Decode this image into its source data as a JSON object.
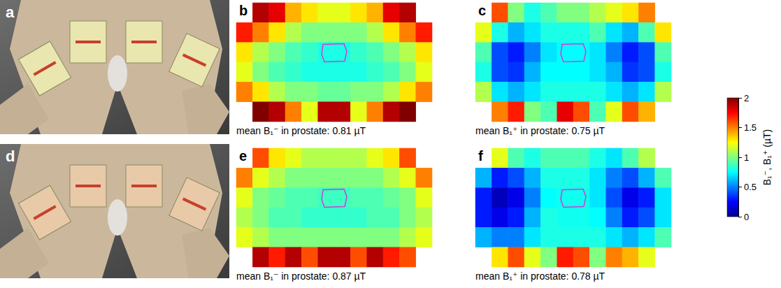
{
  "chart_data": [
    {
      "type": "heatmap",
      "letter": "b",
      "caption": "mean B₁⁻ in prostate: 0.81 µT",
      "cells": [
        [
          null,
          1.9,
          1.8,
          1.4,
          1.3,
          1.2,
          1.2,
          1.3,
          1.4,
          1.8,
          1.9,
          null
        ],
        [
          1.7,
          1.5,
          1.3,
          1.1,
          1.0,
          1.0,
          1.0,
          1.0,
          1.1,
          1.3,
          1.5,
          1.7
        ],
        [
          1.3,
          1.1,
          1.0,
          0.9,
          0.85,
          0.8,
          0.8,
          0.85,
          0.9,
          1.0,
          1.1,
          1.3
        ],
        [
          1.2,
          1.0,
          0.9,
          0.85,
          0.8,
          0.8,
          0.8,
          0.8,
          0.85,
          0.9,
          1.0,
          1.2
        ],
        [
          1.5,
          1.3,
          1.1,
          1.0,
          1.0,
          0.95,
          0.95,
          1.0,
          1.0,
          1.1,
          1.3,
          1.5
        ],
        [
          null,
          2.0,
          1.9,
          1.5,
          1.2,
          1.9,
          1.9,
          1.2,
          1.5,
          1.9,
          2.0,
          null
        ]
      ]
    },
    {
      "type": "heatmap",
      "letter": "c",
      "caption": "mean B₁⁺ in prostate: 0.75 µT",
      "cells": [
        [
          null,
          1.6,
          1.0,
          0.8,
          0.9,
          1.0,
          1.0,
          1.1,
          1.2,
          1.3,
          1.5,
          null
        ],
        [
          1.2,
          0.8,
          0.6,
          0.7,
          0.8,
          0.8,
          0.8,
          0.9,
          0.7,
          0.6,
          0.9,
          1.3
        ],
        [
          0.9,
          0.4,
          0.3,
          0.5,
          0.7,
          0.75,
          0.75,
          0.7,
          0.5,
          0.3,
          0.4,
          0.9
        ],
        [
          0.8,
          0.4,
          0.35,
          0.6,
          0.75,
          0.75,
          0.75,
          0.7,
          0.6,
          0.35,
          0.4,
          0.8
        ],
        [
          1.1,
          0.7,
          0.6,
          0.7,
          0.8,
          0.8,
          0.8,
          0.8,
          0.7,
          0.6,
          0.7,
          1.1
        ],
        [
          null,
          1.5,
          1.7,
          1.0,
          0.9,
          1.8,
          1.6,
          0.9,
          1.2,
          1.6,
          1.4,
          null
        ]
      ]
    },
    {
      "type": "heatmap",
      "letter": "e",
      "caption": "mean B₁⁻ in prostate: 0.87 µT",
      "cells": [
        [
          null,
          1.6,
          1.3,
          1.2,
          1.1,
          1.1,
          1.1,
          1.1,
          1.2,
          1.3,
          1.6,
          null
        ],
        [
          1.5,
          1.2,
          1.1,
          1.0,
          1.0,
          1.0,
          1.0,
          1.0,
          1.0,
          1.1,
          1.2,
          1.5
        ],
        [
          1.2,
          1.0,
          0.95,
          0.9,
          0.9,
          0.87,
          0.87,
          0.9,
          0.9,
          0.95,
          1.0,
          1.2
        ],
        [
          1.1,
          1.0,
          0.9,
          0.9,
          0.85,
          0.85,
          0.85,
          0.85,
          0.9,
          0.9,
          1.0,
          1.1
        ],
        [
          1.2,
          1.1,
          1.0,
          1.0,
          1.0,
          1.0,
          1.0,
          1.0,
          1.0,
          1.0,
          1.1,
          1.2
        ],
        [
          null,
          1.9,
          1.7,
          1.9,
          1.6,
          1.9,
          1.9,
          1.6,
          1.9,
          1.7,
          1.6,
          null
        ]
      ]
    },
    {
      "type": "heatmap",
      "letter": "f",
      "caption": "mean B₁⁺ in prostate: 0.78 µT",
      "cells": [
        [
          null,
          1.2,
          0.9,
          0.8,
          0.9,
          0.9,
          0.9,
          0.8,
          0.7,
          0.9,
          1.1,
          null
        ],
        [
          0.6,
          0.3,
          0.4,
          0.6,
          0.8,
          0.8,
          0.8,
          0.7,
          0.5,
          0.4,
          0.6,
          0.9
        ],
        [
          0.3,
          0.1,
          0.2,
          0.5,
          0.75,
          0.78,
          0.78,
          0.7,
          0.4,
          0.2,
          0.3,
          0.7
        ],
        [
          0.3,
          0.2,
          0.3,
          0.6,
          0.8,
          0.78,
          0.78,
          0.75,
          0.5,
          0.3,
          0.4,
          0.7
        ],
        [
          0.6,
          0.5,
          0.5,
          0.7,
          0.8,
          0.8,
          0.8,
          0.8,
          0.7,
          0.6,
          0.7,
          0.9
        ],
        [
          null,
          1.3,
          1.6,
          1.2,
          1.0,
          1.7,
          1.6,
          1.0,
          1.5,
          1.4,
          1.2,
          null
        ]
      ]
    }
  ],
  "colorbar": {
    "label": "B₁⁻, B₁⁺ (µT)",
    "range": [
      0,
      2
    ],
    "ticks": [
      0,
      0.5,
      1,
      1.5,
      2
    ]
  },
  "render_panels": [
    {
      "letter": "a"
    },
    {
      "letter": "d"
    }
  ]
}
